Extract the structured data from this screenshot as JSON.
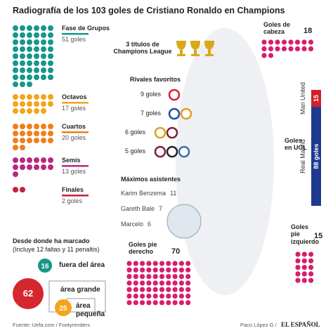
{
  "title": "Radiografía de los 103 goles de Cristiano Ronaldo en Champions",
  "phases": [
    {
      "label": "Fase de Grupos",
      "value": 51,
      "value_label": "51 goles",
      "color": "#17968c"
    },
    {
      "label": "Octavos",
      "value": 17,
      "value_label": "17 goles",
      "color": "#f2a41c"
    },
    {
      "label": "Cuartos",
      "value": 20,
      "value_label": "20 goles",
      "color": "#ef7f1a"
    },
    {
      "label": "Semis",
      "value": 13,
      "value_label": "13 goles",
      "color": "#b8287f"
    },
    {
      "label": "Finales",
      "value": 2,
      "value_label": "2 goles",
      "color": "#c81e3a"
    }
  ],
  "trophies": {
    "label": "3 títulos de Champions League",
    "count": 3
  },
  "rivals": {
    "title": "Rivales favoritos",
    "rows": [
      "9 goles",
      "7 goles",
      "6 goles",
      "5 goles"
    ]
  },
  "assists": {
    "title": "Máximos asistentes",
    "rows": [
      {
        "name": "Karim Benzema",
        "value": 11
      },
      {
        "name": "Gareth Bale",
        "value": 7
      },
      {
        "name": "Marcelo",
        "value": 6
      }
    ]
  },
  "header_goals": {
    "label": "Goles de cabeza",
    "value": 18,
    "color": "#d61f6c"
  },
  "ucl": {
    "label": "Goles en UCL",
    "teams": [
      {
        "name": "Man United",
        "value": 15,
        "color": "#d11f2c"
      },
      {
        "name": "Real Madrid",
        "value": 88,
        "value_label": "88 goles",
        "color": "#1d3a8f"
      }
    ]
  },
  "right_foot": {
    "label": "Goles pie derecho",
    "value": 70,
    "color": "#d61f6c"
  },
  "left_foot": {
    "label": "Goles pie izquierdo",
    "value": 15,
    "color": "#d61f6c"
  },
  "zones": {
    "title": "Desde donde ha marcado",
    "subtitle": "(Incluye 12 faltas y 11 penaltis)",
    "items": [
      {
        "value": 16,
        "label": "fuera del área",
        "color": "#17968c"
      },
      {
        "value": 62,
        "label": "área grande",
        "color": "#d6262e"
      },
      {
        "value": 25,
        "label": "área pequeña",
        "color": "#f2a41c"
      }
    ]
  },
  "footer": {
    "source": "Fuente: Uefa.com / Footyrenders",
    "credit": "Paco López G /",
    "brand": "EL ESPAÑOL"
  }
}
